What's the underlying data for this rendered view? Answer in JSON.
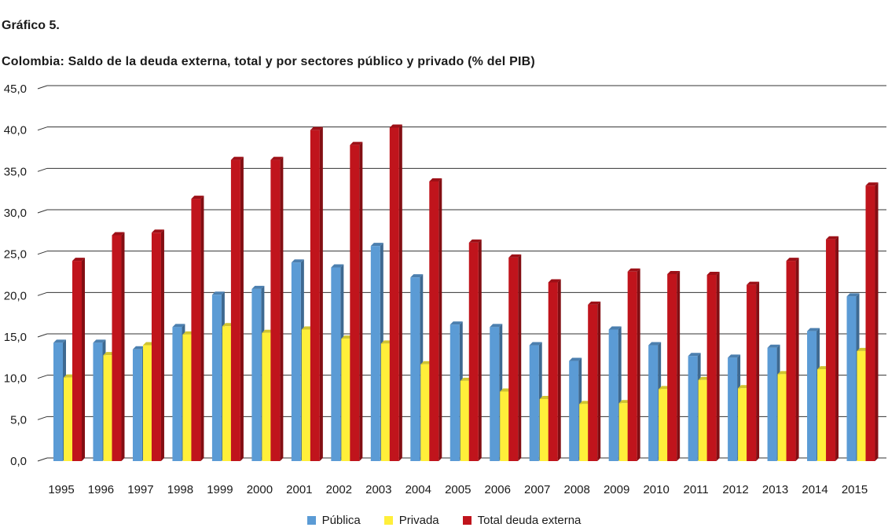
{
  "figure_label": "Gráfico 5.",
  "chart_data": {
    "type": "bar",
    "title": "Colombia: Saldo de la deuda externa, total y por sectores público y privado (% del PIB)",
    "xlabel": "",
    "ylabel": "",
    "ylim": [
      0,
      45
    ],
    "yticks": [
      "0,0",
      "5,0",
      "10,0",
      "15,0",
      "20,0",
      "25,0",
      "30,0",
      "35,0",
      "40,0",
      "45,0"
    ],
    "grid": true,
    "legend_position": "bottom",
    "categories": [
      "1995",
      "1996",
      "1997",
      "1998",
      "1999",
      "2000",
      "2001",
      "2002",
      "2003",
      "2004",
      "2005",
      "2006",
      "2007",
      "2008",
      "2009",
      "2010",
      "2011",
      "2012",
      "2013",
      "2014",
      "2015"
    ],
    "series": [
      {
        "name": "Pública",
        "color": "#5b9bd5",
        "values": [
          14.3,
          14.3,
          13.5,
          16.2,
          20.1,
          20.8,
          24.0,
          23.4,
          26.0,
          22.2,
          16.5,
          16.2,
          14.0,
          12.1,
          15.9,
          14.0,
          12.7,
          12.5,
          13.7,
          15.7,
          19.9
        ]
      },
      {
        "name": "Privada",
        "color": "#ffef3a",
        "values": [
          10.1,
          12.8,
          14.0,
          15.3,
          16.3,
          15.5,
          15.9,
          14.8,
          14.2,
          11.7,
          9.7,
          8.4,
          7.5,
          6.9,
          7.0,
          8.7,
          9.8,
          8.8,
          10.5,
          11.1,
          13.3
        ]
      },
      {
        "name": "Total deuda externa",
        "color": "#c0141c",
        "values": [
          24.2,
          27.3,
          27.6,
          31.7,
          36.4,
          36.4,
          40.0,
          38.2,
          40.3,
          33.8,
          26.4,
          24.6,
          21.6,
          18.9,
          22.9,
          22.6,
          22.5,
          21.3,
          24.2,
          26.8,
          33.3
        ]
      }
    ]
  }
}
